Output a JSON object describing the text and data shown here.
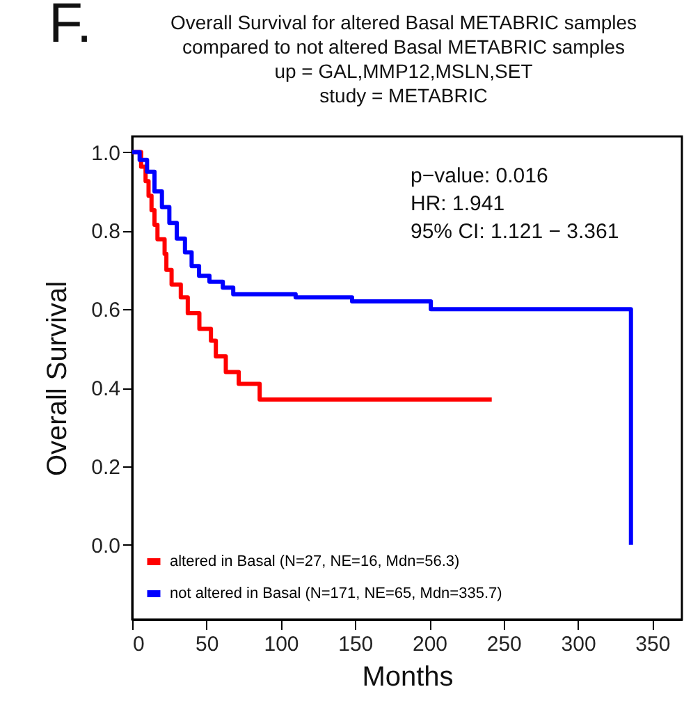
{
  "chart_data": {
    "type": "step",
    "title": "Overall Survival for altered Basal METABRIC samples\ncompared to not altered Basal METABRIC samples",
    "subtitle": "up = GAL,MMP12,MSLN,SET\nstudy = METABRIC",
    "xlabel": "Months",
    "ylabel": "Overall Survival",
    "annotations": [
      "F.",
      "p−value: 0.016",
      "HR:        1.941",
      "95% CI:  1.121 − 3.361"
    ],
    "series": [
      {
        "name": "altered in Basal (N=27, NE=16, Mdn=56.3)",
        "color": "#ff0000",
        "x": [
          0,
          6,
          9,
          11,
          13,
          15,
          17,
          21.8,
          23,
          26.5,
          32.7,
          37.4,
          45.2,
          53,
          56.3,
          63,
          71.7,
          85.8,
          242
        ],
        "values": [
          1.0,
          0.963,
          0.926,
          0.889,
          0.852,
          0.815,
          0.778,
          0.741,
          0.7,
          0.663,
          0.63,
          0.59,
          0.55,
          0.52,
          0.48,
          0.44,
          0.41,
          0.37,
          0.37
        ]
      },
      {
        "name": "not altered in Basal (N=171, NE=65, Mdn=335.7)",
        "color": "#0000ff",
        "x": [
          0,
          5,
          10,
          15,
          20,
          25,
          30,
          35.5,
          40,
          45,
          52,
          61,
          68,
          110,
          148,
          201,
          335.7,
          335.7
        ],
        "values": [
          1.0,
          0.98,
          0.95,
          0.9,
          0.86,
          0.82,
          0.78,
          0.745,
          0.71,
          0.685,
          0.67,
          0.655,
          0.638,
          0.63,
          0.62,
          0.6,
          0.6,
          0.0
        ]
      }
    ],
    "xlim": [
      0,
      370
    ],
    "xticks": [
      0,
      50,
      100,
      150,
      200,
      250,
      300,
      350
    ],
    "ylim": [
      -0.19,
      1.04
    ],
    "yticks": [
      {
        "value": 0,
        "label": "0.0"
      },
      {
        "value": 0.2,
        "label": "0.2"
      },
      {
        "value": 0.4,
        "label": "0.4"
      },
      {
        "value": 0.6,
        "label": "0.6"
      },
      {
        "value": 0.8,
        "label": "0.8"
      },
      {
        "value": 1,
        "label": "1.0"
      }
    ],
    "legend": "bottom left",
    "grid": false,
    "line_style": "solid",
    "marker": "none"
  }
}
